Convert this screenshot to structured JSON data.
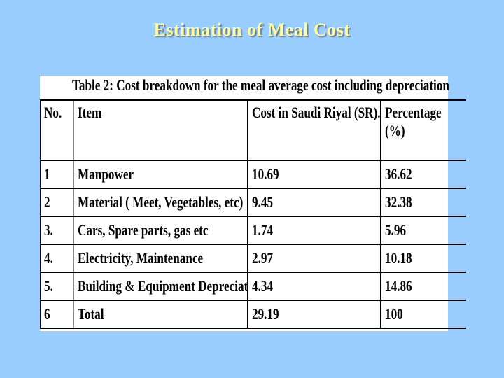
{
  "slide": {
    "title": "Estimation of Meal Cost"
  },
  "table": {
    "caption": "Table 2: Cost breakdown for the meal average cost including depreciation",
    "headers": {
      "no": "No.",
      "item": "Item",
      "cost": "Cost  in Saudi Riyal (SR).",
      "percentage": "Percentage (%)"
    },
    "rows": [
      {
        "no": "1",
        "item": "Manpower",
        "cost": "10.69",
        "percentage": "36.62"
      },
      {
        "no": "2",
        "item": "Material ( Meet, Vegetables, etc)",
        "cost": "9.45",
        "percentage": "32.38"
      },
      {
        "no": "3.",
        "item": "Cars, Spare parts, gas etc",
        "cost": "1.74",
        "percentage": "5.96"
      },
      {
        "no": "4.",
        "item": "Electricity, Maintenance",
        "cost": "2.97",
        "percentage": "10.18"
      },
      {
        "no": "5.",
        "item": "Building & Equipment Depreciation",
        "cost": "4.34",
        "percentage": "14.86"
      },
      {
        "no": "6",
        "item": "Total",
        "cost": "29.19",
        "percentage": "100"
      }
    ]
  },
  "colors": {
    "background": "#99ccff",
    "title": "#ffff99",
    "panel": "#ffffff",
    "text": "#000000"
  }
}
